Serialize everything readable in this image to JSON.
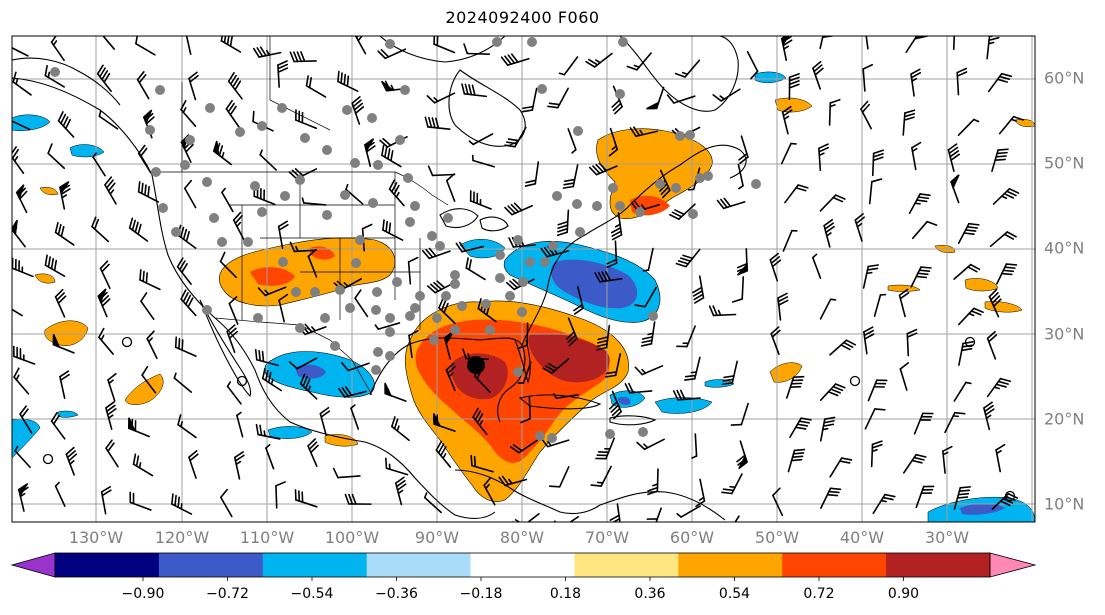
{
  "title": "2024092400 F060",
  "lon_labels": [
    "130°W",
    "120°W",
    "110°W",
    "100°W",
    "90°W",
    "80°W",
    "70°W",
    "60°W",
    "50°W",
    "40°W",
    "30°W"
  ],
  "lat_labels": [
    "60°N",
    "50°N",
    "40°N",
    "30°N",
    "20°N",
    "10°N"
  ],
  "colorbar": {
    "ticks": [
      "−0.90",
      "−0.72",
      "−0.54",
      "−0.36",
      "−0.18",
      "0.18",
      "0.36",
      "0.54",
      "0.72",
      "0.90"
    ],
    "colors": [
      "#9933cc",
      "#000080",
      "#3c5ac8",
      "#00b4f0",
      "#a8dcf8",
      "#ffffff",
      "#ffe680",
      "#ffa500",
      "#ff4500",
      "#b22222",
      "#ff88b4"
    ]
  },
  "features": {
    "storm_center_marker": "black-dot",
    "station_markers": "gray-dots",
    "wind_symbols": "wind-barbs"
  }
}
